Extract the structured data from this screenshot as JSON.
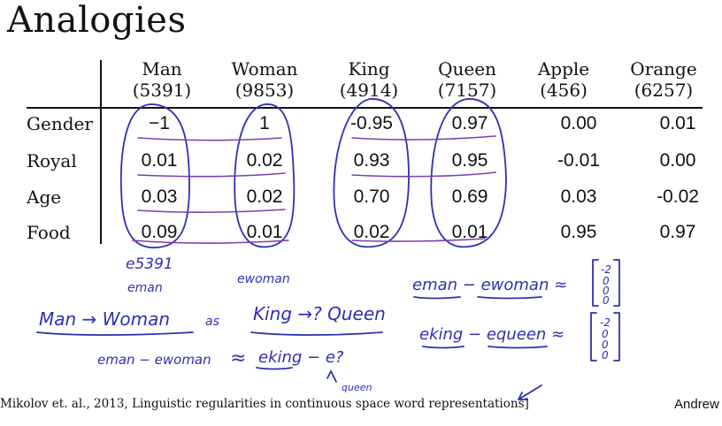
{
  "slide": {
    "title": "Analogies",
    "citation": "Mikolov et. al., 2013, Linguistic regularities in continuous space word representations]",
    "author": "Andrew"
  },
  "table": {
    "columns": [
      {
        "word": "Man",
        "index": "(5391)"
      },
      {
        "word": "Woman",
        "index": "(9853)"
      },
      {
        "word": "King",
        "index": "(4914)"
      },
      {
        "word": "Queen",
        "index": "(7157)"
      },
      {
        "word": "Apple",
        "index": "(456)"
      },
      {
        "word": "Orange",
        "index": "(6257)"
      }
    ],
    "rows": [
      {
        "label": "Gender",
        "values": [
          "−1",
          "1",
          "-0.95",
          "0.97",
          "0.00",
          "0.01"
        ]
      },
      {
        "label": "Royal",
        "values": [
          "0.01",
          "0.02",
          "0.93",
          "0.95",
          "-0.01",
          "0.00"
        ]
      },
      {
        "label": "Age",
        "values": [
          "0.03",
          "0.02",
          "0.70",
          "0.69",
          "0.03",
          "-0.02"
        ]
      },
      {
        "label": "Food",
        "values": [
          "0.09",
          "0.01",
          "0.02",
          "0.01",
          "0.95",
          "0.97"
        ]
      }
    ]
  },
  "handwriting": {
    "e5391": "e5391",
    "eman": "eman",
    "ewoman": "ewoman",
    "man_woman": "Man → Woman",
    "as": "as",
    "king_queen": "King →? Queen",
    "eman_minus_ewoman": "eman − ewoman",
    "approx": "≈",
    "eking_minus_e": "eking − e?",
    "equeen_note": "queen",
    "eq1_lhs": "eman − ewoman ≈",
    "eq2_lhs": "eking − equeen ≈",
    "vec1": [
      "-2",
      "0",
      "0",
      "0"
    ],
    "vec2": [
      "-2",
      "0",
      "0",
      "0"
    ]
  },
  "ink_color": "#2f2fb5",
  "highlight_color": "#7b3fb0"
}
